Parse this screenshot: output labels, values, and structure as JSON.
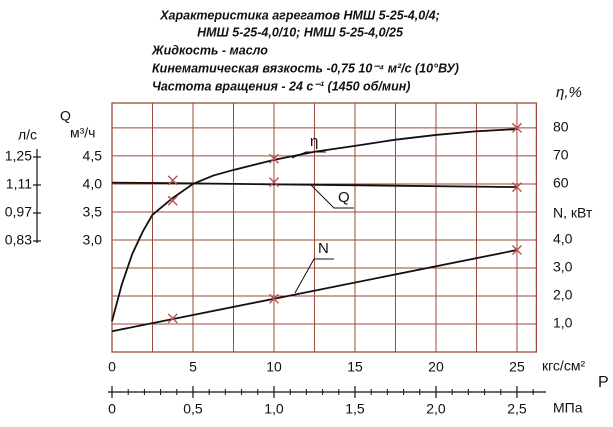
{
  "chart_data": {
    "type": "line",
    "title_lines": [
      "Характеристика агрегатов НМШ 5-25-4,0/4;",
      "НМШ 5-25-4,0/10; НМШ 5-25-4,0/25"
    ],
    "notes": [
      "Жидкость - масло",
      "Кинематическая вязкость -0,75 10⁻⁴ м²/с (10°ВУ)",
      "Частота вращения - 24 с⁻¹ (1450 об/мин)"
    ],
    "x_label": "кгс/см²",
    "xlim": [
      0,
      26.2
    ],
    "xticks": [
      0,
      5,
      10,
      15,
      20,
      25
    ],
    "xgrid": [
      0,
      2.5,
      5,
      7.5,
      10,
      12.5,
      15,
      17.5,
      20,
      22.5,
      25
    ],
    "p_label": "P",
    "x2_label": "МПа",
    "x2lim": [
      0,
      2.62
    ],
    "x2ticks": [
      0,
      {
        "value": 0.5,
        "label": "0,5"
      },
      {
        "value": 1.0,
        "label": "1,0"
      },
      {
        "value": 1.5,
        "label": "1,5"
      },
      {
        "value": 2.0,
        "label": "2,0"
      },
      {
        "value": 2.5,
        "label": "2,5"
      }
    ],
    "x2minor_ticks": [
      0.1,
      0.2,
      0.3,
      0.4,
      0.6,
      0.7,
      0.8,
      0.9,
      1.1,
      1.2,
      1.3,
      1.4,
      1.6,
      1.7,
      1.8,
      1.9,
      2.1,
      2.2,
      2.3,
      2.4,
      2.6
    ],
    "y_label": "η,%",
    "ylim": [
      0,
      88.9
    ],
    "yticks": [
      80,
      70,
      60
    ],
    "ygrid": [
      10,
      20,
      30,
      40,
      50,
      60,
      70,
      80
    ],
    "n_axis": {
      "label": "N, кВт",
      "ylim": [
        0,
        8.89
      ],
      "ticks": [
        {
          "value": 4,
          "label": "4,0"
        },
        {
          "value": 3,
          "label": "3,0"
        },
        {
          "value": 2,
          "label": "2,0"
        },
        {
          "value": 1,
          "label": "1,0"
        }
      ]
    },
    "q_axis": {
      "symbol": "Q",
      "label": "м³/ч",
      "ylim": [
        1.02,
        5.46
      ],
      "ticks": [
        {
          "value": 4.5,
          "label": "4,5"
        },
        {
          "value": 4.0,
          "label": "4,0"
        },
        {
          "value": 3.5,
          "label": "3,5"
        },
        {
          "value": 3.0,
          "label": "3,0"
        }
      ]
    },
    "ql_axis": {
      "label": "л/с",
      "ylim": [
        0.275,
        1.52
      ],
      "ticks": [
        {
          "value": 1.25,
          "label": "1,25"
        },
        {
          "value": 1.11,
          "label": "1,11"
        },
        {
          "value": 0.97,
          "label": "0,97"
        },
        {
          "value": 0.83,
          "label": "0,83"
        }
      ]
    },
    "series": [
      {
        "name": "η",
        "axis": "y",
        "color": "#111111",
        "x": [
          0,
          0.6,
          1.25,
          1.9,
          2.5,
          3.75,
          5,
          6.25,
          7.5,
          10,
          12.5,
          15,
          17.5,
          20,
          22.5,
          25
        ],
        "values": [
          11,
          24,
          35,
          43,
          49,
          55,
          60,
          63,
          65,
          68.6,
          71.5,
          73.6,
          75.8,
          77.5,
          78.8,
          79.6
        ],
        "markers": {
          "x": [
            3.75,
            10,
            25
          ],
          "values": [
            54,
            69,
            80
          ]
        }
      },
      {
        "name": "Q",
        "axis": "q",
        "color": "#111111",
        "x": [
          0,
          3.75,
          10,
          25
        ],
        "values": [
          4.04,
          4.03,
          4.01,
          3.96
        ],
        "markers": {
          "x": [
            3.75,
            10,
            25
          ],
          "values": [
            4.08,
            4.05,
            3.96
          ]
        }
      },
      {
        "name": "N",
        "axis": "n",
        "color": "#111111",
        "x": [
          0,
          25
        ],
        "values": [
          0.74,
          3.64
        ],
        "markers": {
          "x": [
            3.75,
            10,
            25
          ],
          "values": [
            1.2,
            1.9,
            3.64
          ]
        }
      }
    ],
    "marker_color": "#c0504d"
  }
}
